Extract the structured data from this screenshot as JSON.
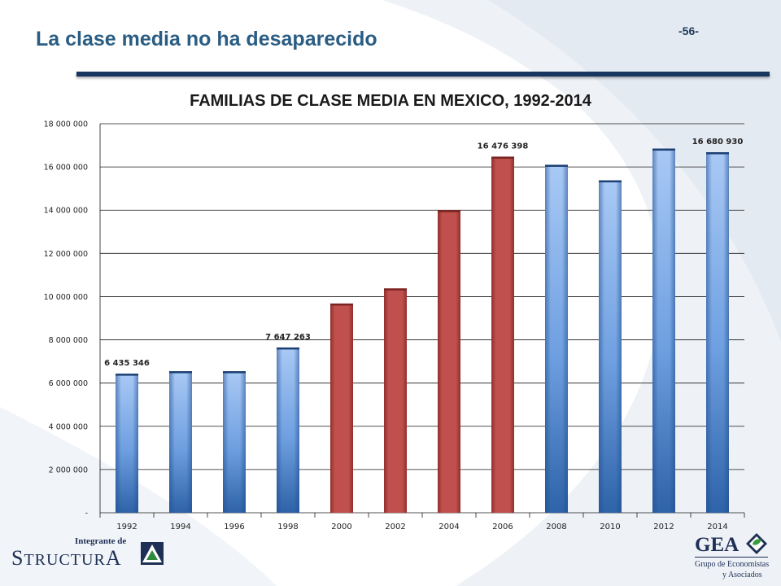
{
  "header": {
    "title": "La clase media no ha desaparecido",
    "page_number": "-56-"
  },
  "colors": {
    "blue_bar_light": "#a9c9f5",
    "blue_bar_dark": "#2e63a8",
    "red_bar": "#c0504d",
    "title_blue": "#2a5d83",
    "rule_navy": "#17355e"
  },
  "chart_data": {
    "type": "bar",
    "title": "FAMILIAS DE CLASE MEDIA EN MEXICO, 1992-2014",
    "xlabel": "",
    "ylabel": "",
    "categories": [
      "1992",
      "1994",
      "1996",
      "1998",
      "2000",
      "2002",
      "2004",
      "2006",
      "2008",
      "2010",
      "2012",
      "2014"
    ],
    "values": [
      6435346,
      6550000,
      6550000,
      7647263,
      9680000,
      10380000,
      14000000,
      16476398,
      16100000,
      15380000,
      16850000,
      16680930
    ],
    "bar_colors": [
      "blue",
      "blue",
      "blue",
      "blue",
      "red",
      "red",
      "red",
      "red",
      "blue",
      "blue",
      "blue",
      "blue"
    ],
    "ylim": [
      0,
      18000000
    ],
    "yticks": [
      {
        "value": 0,
        "label": "-"
      },
      {
        "value": 2000000,
        "label": "2 000 000"
      },
      {
        "value": 4000000,
        "label": "4 000 000"
      },
      {
        "value": 6000000,
        "label": "6 000 000"
      },
      {
        "value": 8000000,
        "label": "8 000 000"
      },
      {
        "value": 10000000,
        "label": "10 000 000"
      },
      {
        "value": 12000000,
        "label": "12 000 000"
      },
      {
        "value": 14000000,
        "label": "14 000 000"
      },
      {
        "value": 16000000,
        "label": "16 000 000"
      },
      {
        "value": 18000000,
        "label": "18 000 000"
      }
    ],
    "data_labels": [
      {
        "index": 0,
        "text": "6 435  346"
      },
      {
        "index": 3,
        "text": "7 647  263"
      },
      {
        "index": 7,
        "text": "16 476  398"
      },
      {
        "index": 11,
        "text": "16 680  930"
      }
    ],
    "grid": true,
    "legend": "none"
  },
  "logos": {
    "left": {
      "line1": "Integrante de",
      "word_big_s": "S",
      "word_mid": "TRUCTUR",
      "word_big_a": "A"
    },
    "right": {
      "name": "GEA",
      "line1": "Grupo de Economistas",
      "line2": "y Asociados"
    }
  }
}
